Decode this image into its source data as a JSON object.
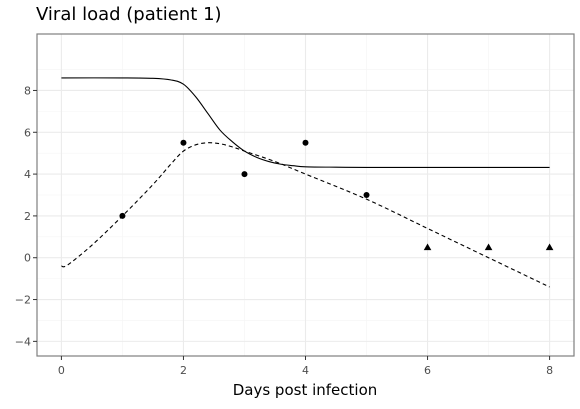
{
  "chart_data": {
    "type": "line",
    "title": "Viral load (patient 1)",
    "xlabel": "Days post infection",
    "ylabel": "",
    "xlim": [
      -0.4,
      8.4
    ],
    "ylim": [
      -4.7,
      10.7
    ],
    "x_ticks": [
      0,
      2,
      4,
      6,
      8
    ],
    "y_ticks": [
      -4,
      -2,
      0,
      2,
      4,
      6,
      8
    ],
    "grid": true,
    "legend": "none",
    "series": [
      {
        "style": "solid",
        "x": [
          0,
          1,
          1.5,
          1.8,
          2,
          2.2,
          2.4,
          2.6,
          2.8,
          3,
          3.2,
          3.4,
          3.6,
          3.8,
          4,
          4.5,
          5,
          6,
          7,
          8
        ],
        "y": [
          8.6,
          8.6,
          8.58,
          8.5,
          8.3,
          7.7,
          6.9,
          6.1,
          5.55,
          5.1,
          4.8,
          4.6,
          4.47,
          4.4,
          4.35,
          4.33,
          4.32,
          4.32,
          4.32,
          4.32
        ]
      },
      {
        "style": "dashed",
        "x": [
          0,
          0.1,
          0.5,
          1,
          1.5,
          1.8,
          2,
          2.2,
          2.4,
          2.6,
          2.8,
          3,
          3.5,
          4,
          5,
          6,
          7,
          8
        ],
        "y": [
          -0.4,
          -0.35,
          0.6,
          2.0,
          3.5,
          4.5,
          5.1,
          5.4,
          5.5,
          5.45,
          5.3,
          5.1,
          4.6,
          4.0,
          2.8,
          1.4,
          0.0,
          -1.4
        ]
      }
    ],
    "points": [
      {
        "x": 1,
        "y": 2.0,
        "shape": "circle"
      },
      {
        "x": 2,
        "y": 5.5,
        "shape": "circle"
      },
      {
        "x": 3,
        "y": 4.0,
        "shape": "circle"
      },
      {
        "x": 4,
        "y": 5.5,
        "shape": "circle"
      },
      {
        "x": 5,
        "y": 3.0,
        "shape": "circle"
      },
      {
        "x": 6,
        "y": 0.5,
        "shape": "triangle"
      },
      {
        "x": 7,
        "y": 0.5,
        "shape": "triangle"
      },
      {
        "x": 8,
        "y": 0.5,
        "shape": "triangle"
      }
    ],
    "colors": {
      "line": "#000000",
      "points": "#000000",
      "panel_border": "#7f7f7f",
      "grid_major": "#ebebeb",
      "grid_minor": "#f5f5f5",
      "tick_text": "#4d4d4d"
    }
  }
}
